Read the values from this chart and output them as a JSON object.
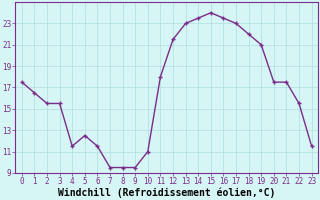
{
  "x": [
    0,
    1,
    2,
    3,
    4,
    5,
    6,
    7,
    8,
    9,
    10,
    11,
    12,
    13,
    14,
    15,
    16,
    17,
    18,
    19,
    20,
    21,
    22,
    23
  ],
  "y": [
    17.5,
    16.5,
    15.5,
    15.5,
    11.5,
    12.5,
    11.5,
    9.5,
    9.5,
    9.5,
    11.0,
    18.0,
    21.5,
    23.0,
    23.5,
    24.0,
    23.5,
    23.0,
    22.0,
    21.0,
    17.5,
    17.5,
    15.5,
    11.5
  ],
  "line_color": "#7b2d8b",
  "marker": "+",
  "background_color": "#d6f5f5",
  "grid_color": "#b0dede",
  "xlabel": "Windchill (Refroidissement éolien,°C)",
  "ylabel": "",
  "ylim": [
    9,
    25
  ],
  "xlim": [
    -0.5,
    23.5
  ],
  "yticks": [
    9,
    11,
    13,
    15,
    17,
    19,
    21,
    23
  ],
  "xticks": [
    0,
    1,
    2,
    3,
    4,
    5,
    6,
    7,
    8,
    9,
    10,
    11,
    12,
    13,
    14,
    15,
    16,
    17,
    18,
    19,
    20,
    21,
    22,
    23
  ],
  "tick_label_fontsize": 5.5,
  "xlabel_fontsize": 7.0,
  "line_width": 1.0,
  "marker_size": 3.5,
  "marker_edge_width": 1.0
}
